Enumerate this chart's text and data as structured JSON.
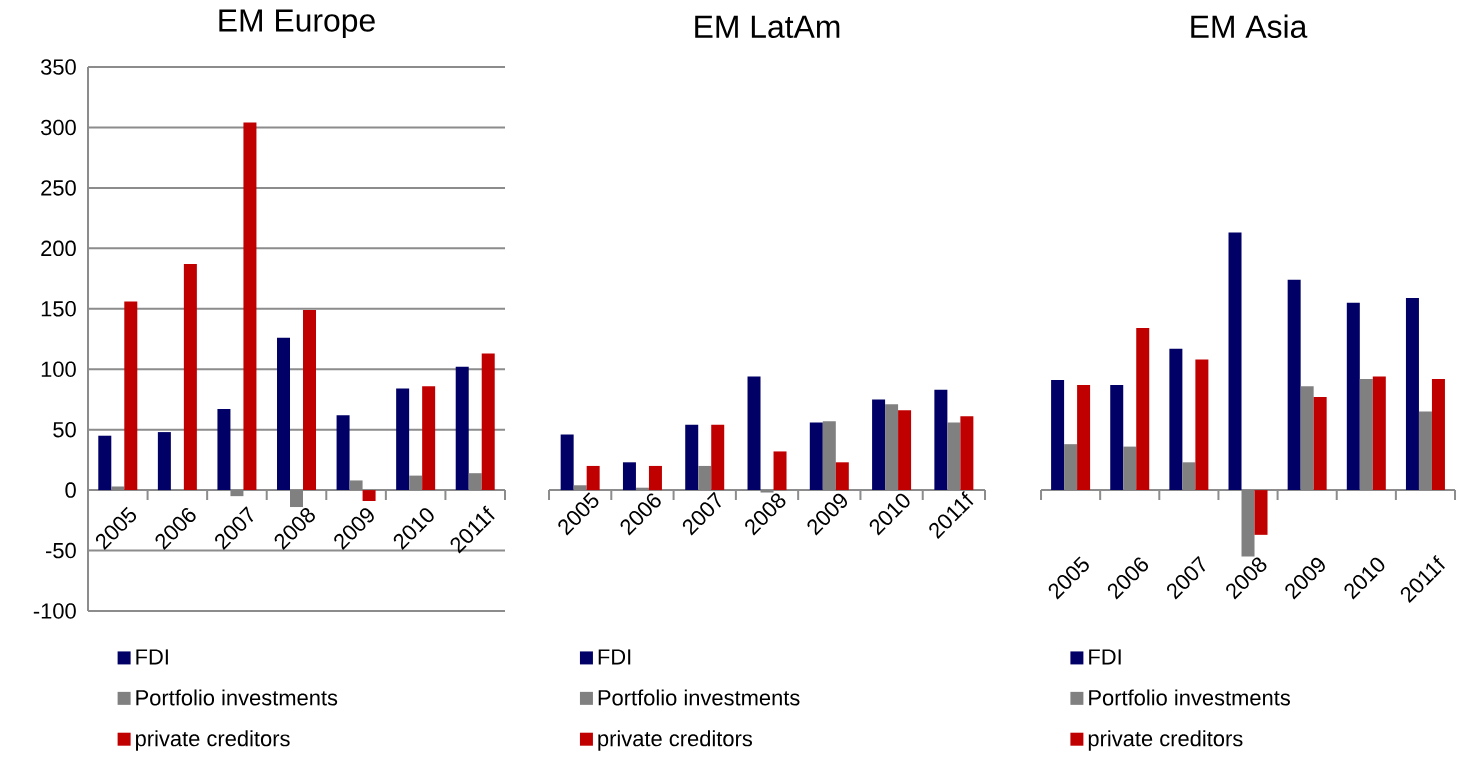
{
  "chart_data": [
    {
      "type": "bar",
      "title": "EM Europe",
      "categories": [
        "2005",
        "2006",
        "2007",
        "2008",
        "2009",
        "2010",
        "2011f"
      ],
      "ylim": [
        -100,
        350
      ],
      "yticks": [
        -100,
        -50,
        0,
        50,
        100,
        150,
        200,
        250,
        300,
        350
      ],
      "grid": "y",
      "legend": "bottom",
      "series": [
        {
          "name": "FDI",
          "color": "#000066",
          "values": [
            45,
            48,
            67,
            126,
            62,
            84,
            102
          ]
        },
        {
          "name": "Portfolio investments",
          "color": "#808080",
          "values": [
            3,
            0,
            -5,
            -14,
            8,
            12,
            14
          ]
        },
        {
          "name": "private creditors",
          "color": "#c00000",
          "values": [
            156,
            187,
            304,
            149,
            -9,
            86,
            113
          ]
        }
      ]
    },
    {
      "type": "bar",
      "title": "EM LatAm",
      "categories": [
        "2005",
        "2006",
        "2007",
        "2008",
        "2009",
        "2010",
        "2011f"
      ],
      "ylim": [
        -100,
        350
      ],
      "yticks": [
        -100,
        -50,
        0,
        50,
        100,
        150,
        200,
        250,
        300,
        350
      ],
      "grid": "y",
      "legend": "bottom",
      "tick_labels": "x",
      "series": [
        {
          "name": "FDI",
          "color": "#000066",
          "values": [
            46,
            23,
            54,
            94,
            56,
            75,
            83
          ]
        },
        {
          "name": "Portfolio investments",
          "color": "#808080",
          "values": [
            4,
            2,
            20,
            -2,
            57,
            71,
            56
          ]
        },
        {
          "name": "private creditors",
          "color": "#c00000",
          "values": [
            20,
            20,
            54,
            32,
            23,
            66,
            61
          ]
        }
      ]
    },
    {
      "type": "bar",
      "title": "EM Asia",
      "categories": [
        "2005",
        "2006",
        "2007",
        "2008",
        "2009",
        "2010",
        "2011f"
      ],
      "ylim": [
        -100,
        350
      ],
      "yticks": [
        -100,
        -50,
        0,
        50,
        100,
        150,
        200,
        250,
        300,
        350
      ],
      "grid": "y",
      "legend": "bottom",
      "tick_labels": "x",
      "series": [
        {
          "name": "FDI",
          "color": "#000066",
          "values": [
            91,
            87,
            117,
            213,
            174,
            155,
            159
          ]
        },
        {
          "name": "Portfolio investments",
          "color": "#808080",
          "values": [
            38,
            36,
            23,
            -55,
            86,
            92,
            65
          ]
        },
        {
          "name": "private creditors",
          "color": "#c00000",
          "values": [
            87,
            134,
            108,
            -37,
            77,
            94,
            92
          ]
        }
      ]
    }
  ]
}
